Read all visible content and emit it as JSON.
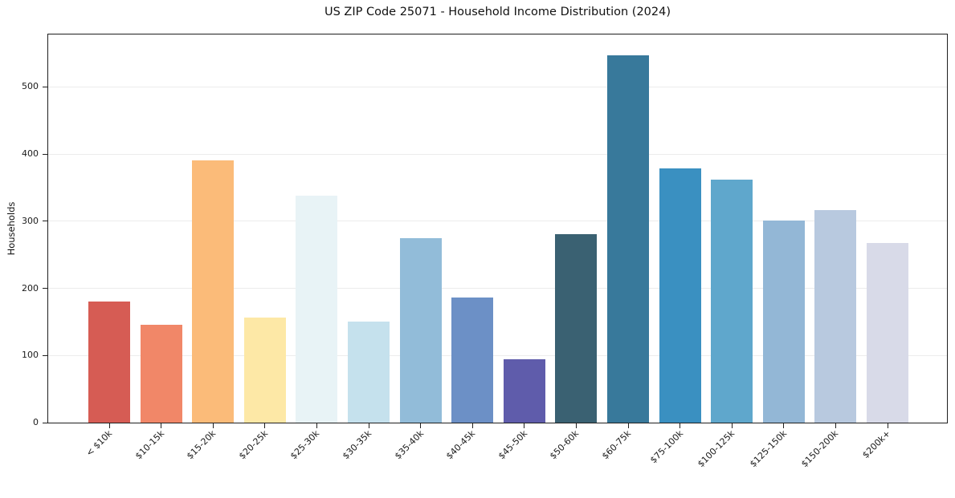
{
  "chart_data": {
    "type": "bar",
    "title": "US ZIP Code 25071 - Household Income Distribution (2024)",
    "xlabel": "",
    "ylabel": "Households",
    "categories": [
      "< $10k",
      "$10-15k",
      "$15-20k",
      "$20-25k",
      "$25-30k",
      "$30-35k",
      "$35-40k",
      "$40-45k",
      "$45-50k",
      "$50-60k",
      "$60-75k",
      "$75-100k",
      "$100-125k",
      "$125-150k",
      "$150-200k",
      "$200k+"
    ],
    "values": [
      180,
      146,
      390,
      157,
      338,
      151,
      275,
      186,
      94,
      281,
      547,
      379,
      362,
      301,
      317,
      268
    ],
    "bar_colors": [
      "#d65c54",
      "#f18768",
      "#fbbb79",
      "#fde8a6",
      "#e8f3f6",
      "#c5e1ed",
      "#92bcd9",
      "#6c90c6",
      "#5f5cab",
      "#3a6172",
      "#38799b",
      "#3a90c1",
      "#5fa7cc",
      "#93b7d6",
      "#b8c9df",
      "#d8dae8"
    ],
    "yticks": [
      0,
      100,
      200,
      300,
      400,
      500
    ],
    "ylim": [
      0,
      578
    ],
    "grid": "horizontal-only",
    "legend": "none",
    "x_tick_rotation_deg": 45
  },
  "style_colors": {
    "background": "#ffffff",
    "spine": "#1f1f1f",
    "gridline": "#ececec",
    "text": "#1a1a1a"
  }
}
